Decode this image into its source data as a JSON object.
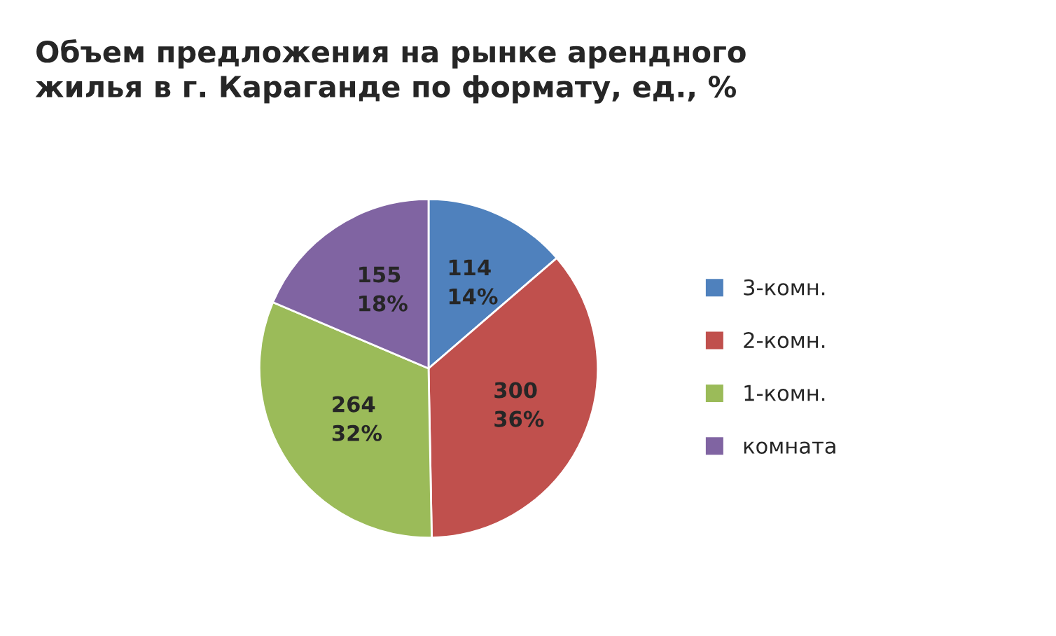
{
  "chart_data": {
    "type": "pie",
    "title": "Объем предложения на рынке арендного\nжилья в г. Караганде по формату, ед., %",
    "categories": [
      "3-комн.",
      "2-комн.",
      "1-комн.",
      "комната"
    ],
    "values": [
      114,
      300,
      264,
      155
    ],
    "value_labels": [
      "114\n14%",
      "300\n36%",
      "264\n32%",
      "155\n18%"
    ],
    "colors": [
      "#4f81bd",
      "#c0504d",
      "#9bbb59",
      "#8064a2"
    ],
    "legend": "right"
  }
}
